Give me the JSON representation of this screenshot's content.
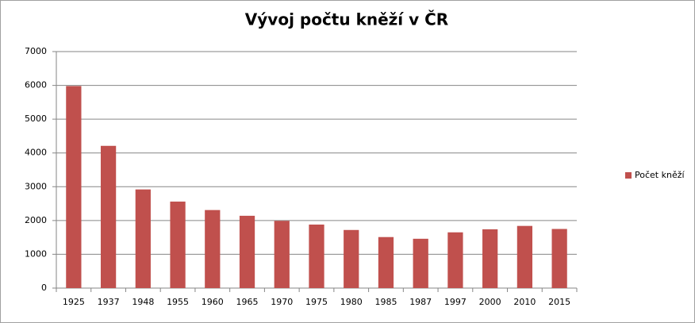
{
  "chart_data": {
    "type": "bar",
    "title": "Vývoj počtu kněží v ČR",
    "categories": [
      "1925",
      "1937",
      "1948",
      "1955",
      "1960",
      "1965",
      "1970",
      "1975",
      "1980",
      "1985",
      "1987",
      "1997",
      "2000",
      "2010",
      "2015"
    ],
    "series": [
      {
        "name": "Počet kněží",
        "color": "#c0504d",
        "values": [
          5980,
          4210,
          2920,
          2560,
          2310,
          2140,
          1990,
          1880,
          1720,
          1510,
          1460,
          1650,
          1740,
          1840,
          1750
        ]
      }
    ],
    "ylim": [
      0,
      7000
    ],
    "yticks": [
      0,
      1000,
      2000,
      3000,
      4000,
      5000,
      6000,
      7000
    ],
    "grid": true,
    "legend": "right"
  }
}
